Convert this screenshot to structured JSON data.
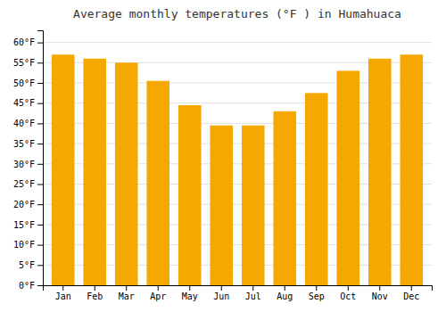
{
  "chart_data": {
    "type": "bar",
    "title": "Average monthly temperatures (°F ) in Humahuaca",
    "categories": [
      "Jan",
      "Feb",
      "Mar",
      "Apr",
      "May",
      "Jun",
      "Jul",
      "Aug",
      "Sep",
      "Oct",
      "Nov",
      "Dec"
    ],
    "values": [
      57,
      56,
      55,
      50.5,
      44.5,
      39.5,
      39.5,
      43,
      47.5,
      53,
      56,
      57
    ],
    "color": "#F5A800",
    "ylim": [
      0,
      63
    ],
    "yticks": [
      {
        "value": 0,
        "label": "0°F"
      },
      {
        "value": 5,
        "label": "5°F"
      },
      {
        "value": 10,
        "label": "10°F"
      },
      {
        "value": 15,
        "label": "15°F"
      },
      {
        "value": 20,
        "label": "20°F"
      },
      {
        "value": 25,
        "label": "25°F"
      },
      {
        "value": 30,
        "label": "30°F"
      },
      {
        "value": 35,
        "label": "35°F"
      },
      {
        "value": 40,
        "label": "40°F"
      },
      {
        "value": 45,
        "label": "45°F"
      },
      {
        "value": 50,
        "label": "50°F"
      },
      {
        "value": 55,
        "label": "55°F"
      },
      {
        "value": 60,
        "label": "60°F"
      }
    ],
    "grid": true
  }
}
